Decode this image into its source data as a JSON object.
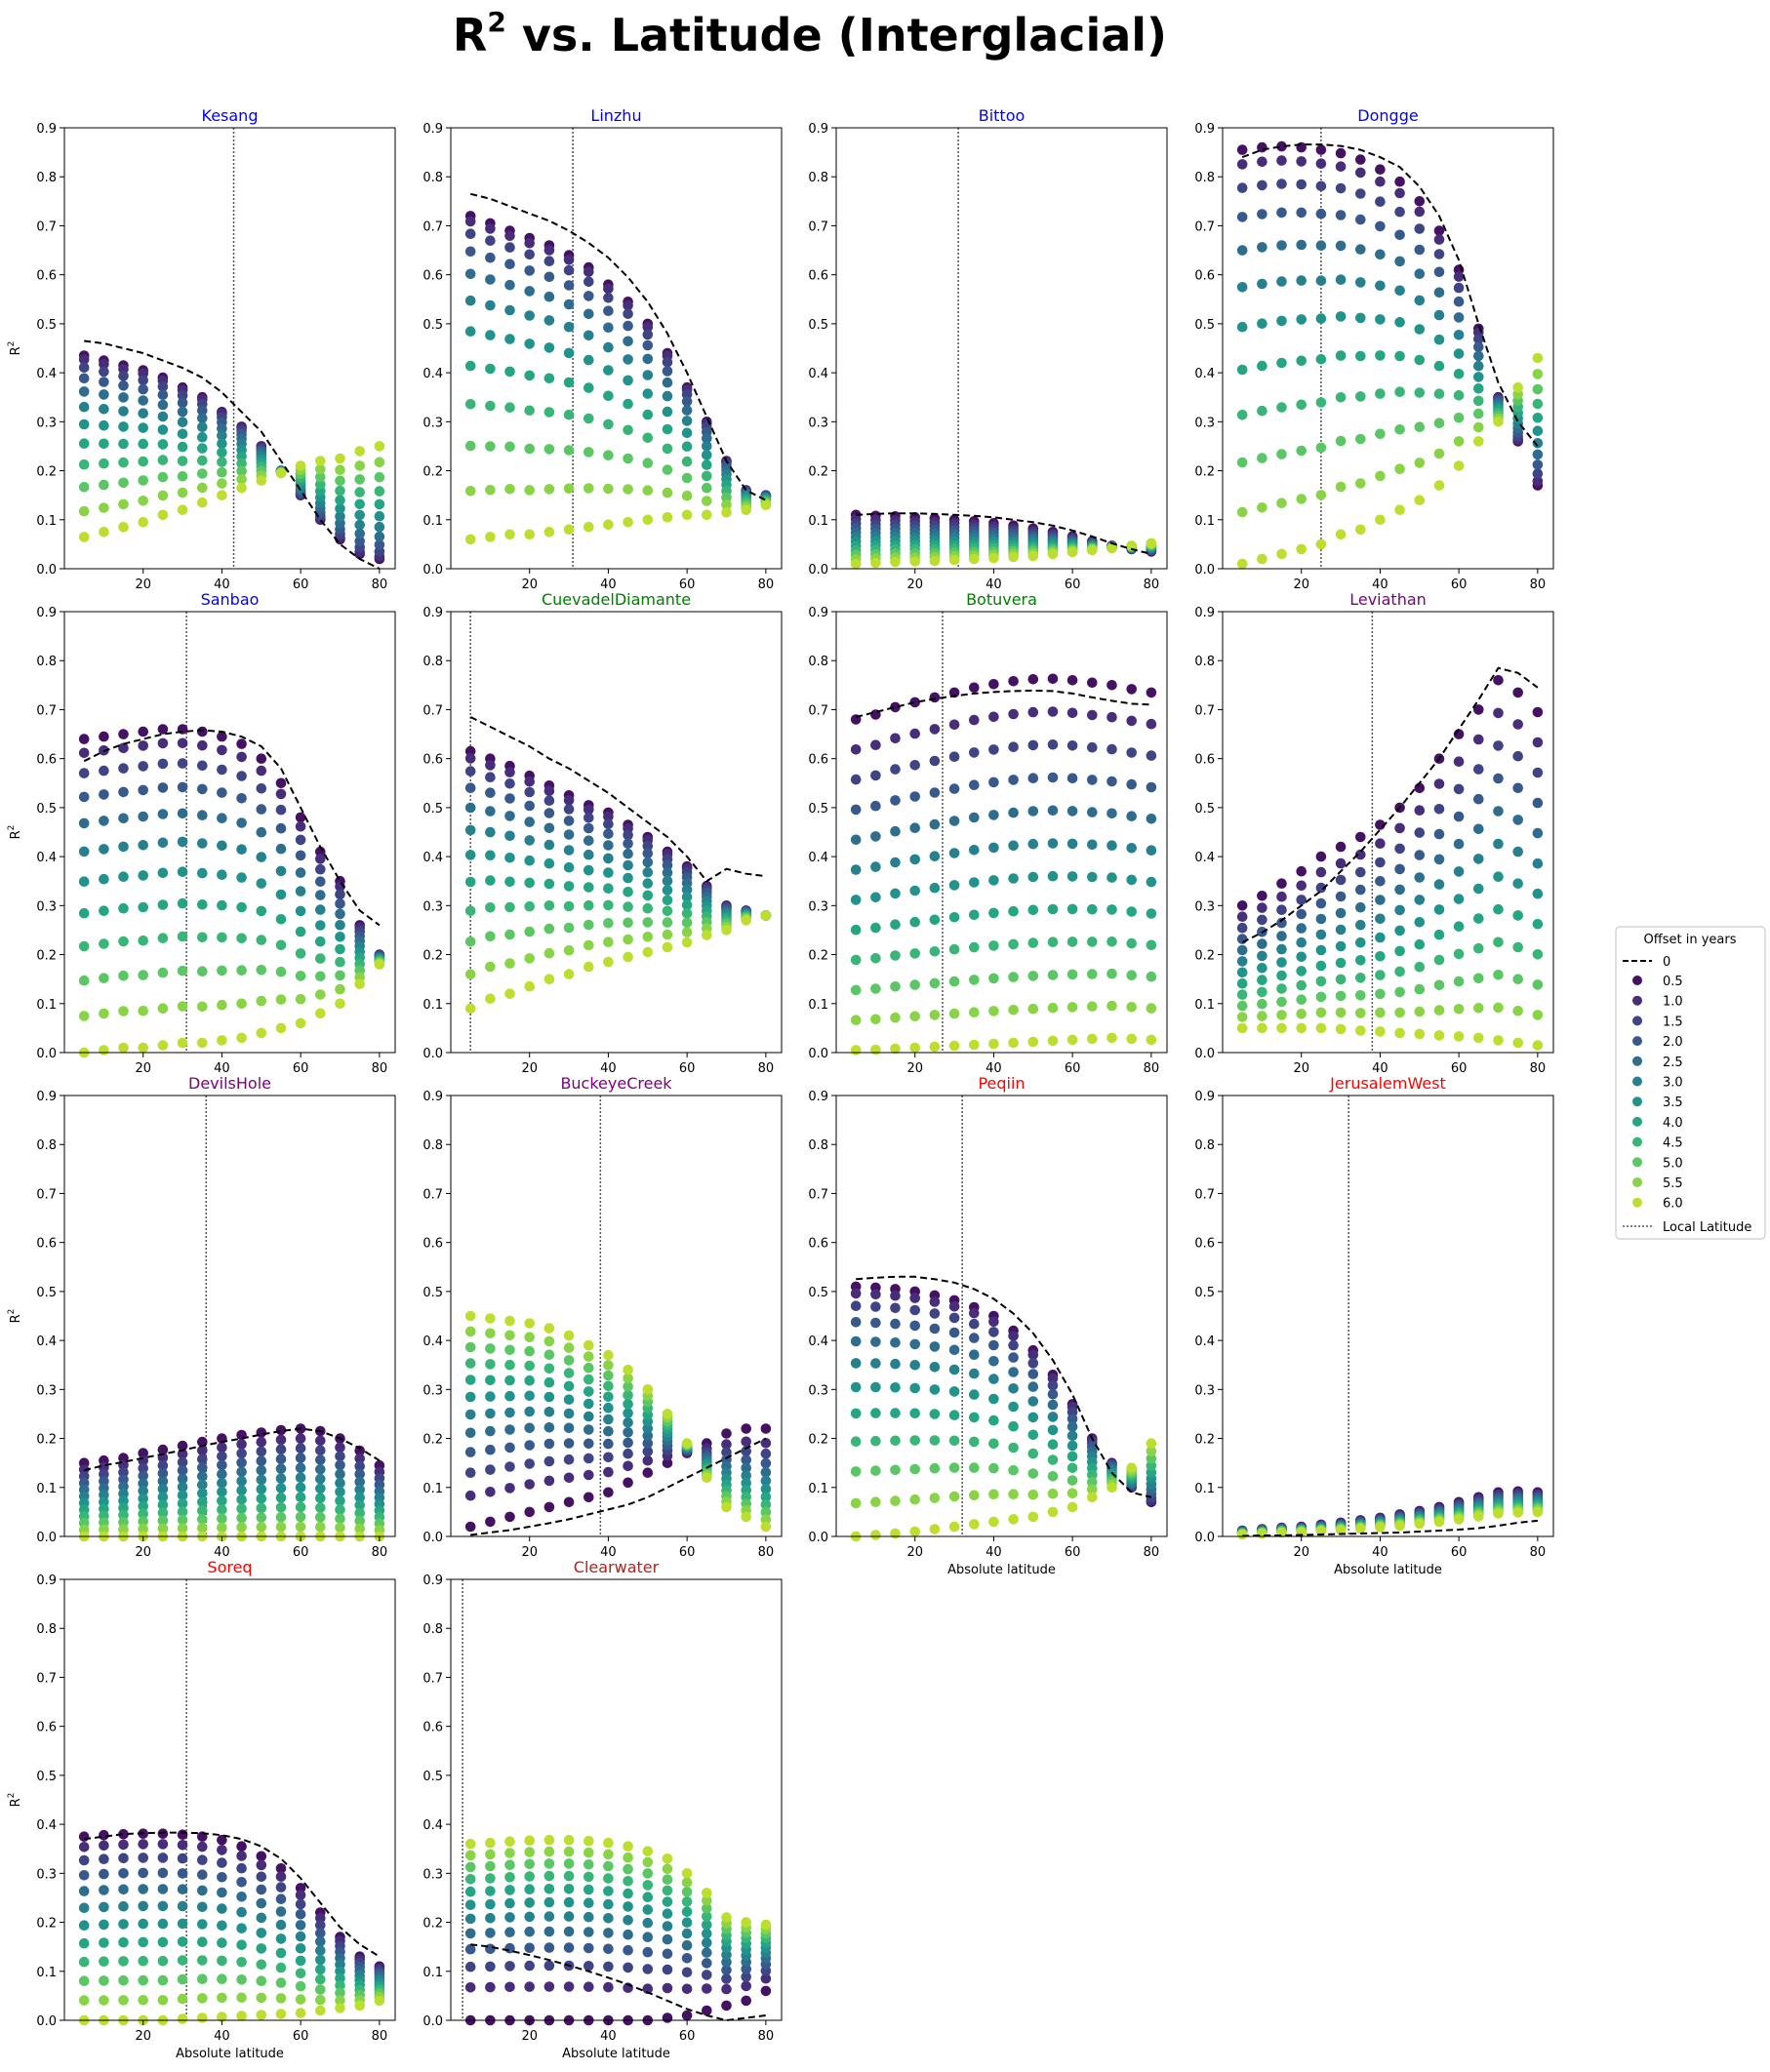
{
  "figure": {
    "title_main": "R",
    "title_sup": "2",
    "title_rest": " vs. Latitude (Interglacial)",
    "xlabel": "Absolute latitude",
    "ylabel_main": "R",
    "ylabel_sup": "2"
  },
  "colors": {
    "blue_group": "#0000ff",
    "green_group": "#008000",
    "purple_group": "#800080",
    "red_group": "#ff0000",
    "darkred_group": "#b22222",
    "baseline": "#000000",
    "local_line": "#555555"
  },
  "legend": {
    "title": "Offset in years",
    "baseline_label": "0",
    "local_label": "Local Latitude",
    "offsets": [
      "0.5",
      "1.0",
      "1.5",
      "2.0",
      "2.5",
      "3.0",
      "3.5",
      "4.0",
      "4.5",
      "5.0",
      "5.5",
      "6.0"
    ]
  },
  "chart_data": {
    "type": "scatter",
    "x": [
      5,
      10,
      15,
      20,
      25,
      30,
      35,
      40,
      45,
      50,
      55,
      60,
      65,
      70,
      75,
      80
    ],
    "xlim": [
      0,
      84
    ],
    "ylim": [
      0,
      0.9
    ],
    "xticks": [
      "20",
      "40",
      "60",
      "80"
    ],
    "yticks": [
      "0.0",
      "0.1",
      "0.2",
      "0.3",
      "0.4",
      "0.5",
      "0.6",
      "0.7",
      "0.8",
      "0.9"
    ],
    "offsets": [
      0.5,
      1.0,
      1.5,
      2.0,
      2.5,
      3.0,
      3.5,
      4.0,
      4.5,
      5.0,
      5.5,
      6.0
    ],
    "panels": [
      {
        "name": "Kesang",
        "color_key": "blue_group",
        "local_lat": 43,
        "b": [
          0.465,
          0.46,
          0.45,
          0.44,
          0.425,
          0.41,
          0.39,
          0.36,
          0.32,
          0.28,
          0.22,
          0.16,
          0.1,
          0.05,
          0.02,
          0.0
        ],
        "top": [
          0.435,
          0.425,
          0.415,
          0.405,
          0.39,
          0.37,
          0.35,
          0.32,
          0.29,
          0.25,
          0.2,
          0.15,
          0.1,
          0.06,
          0.03,
          0.02
        ],
        "shape": "pow",
        "pv": 1.6,
        "end": [
          0.065,
          0.075,
          0.085,
          0.095,
          0.11,
          0.12,
          0.135,
          0.15,
          0.165,
          0.18,
          0.195,
          0.21,
          0.22,
          0.225,
          0.24,
          0.25
        ]
      },
      {
        "name": "Linzhu",
        "color_key": "blue_group",
        "local_lat": 31,
        "b": [
          0.765,
          0.755,
          0.74,
          0.725,
          0.71,
          0.69,
          0.665,
          0.635,
          0.595,
          0.545,
          0.48,
          0.4,
          0.31,
          0.22,
          0.16,
          0.14
        ],
        "top": [
          0.72,
          0.705,
          0.69,
          0.675,
          0.66,
          0.64,
          0.615,
          0.58,
          0.545,
          0.5,
          0.44,
          0.37,
          0.3,
          0.22,
          0.16,
          0.15
        ],
        "shape": "pow",
        "pv": 1.7,
        "end": [
          0.06,
          0.065,
          0.07,
          0.07,
          0.075,
          0.08,
          0.085,
          0.09,
          0.095,
          0.1,
          0.105,
          0.11,
          0.11,
          0.115,
          0.12,
          0.13
        ]
      },
      {
        "name": "Bittoo",
        "color_key": "blue_group",
        "local_lat": 31,
        "b": [
          0.11,
          0.112,
          0.113,
          0.113,
          0.112,
          0.11,
          0.108,
          0.105,
          0.1,
          0.095,
          0.088,
          0.078,
          0.066,
          0.052,
          0.04,
          0.03
        ],
        "top": [
          0.11,
          0.108,
          0.107,
          0.105,
          0.103,
          0.1,
          0.097,
          0.093,
          0.088,
          0.082,
          0.075,
          0.066,
          0.056,
          0.047,
          0.04,
          0.035
        ],
        "shape": "lin",
        "pv": 1,
        "end": [
          0.01,
          0.012,
          0.014,
          0.015,
          0.016,
          0.018,
          0.02,
          0.022,
          0.024,
          0.026,
          0.03,
          0.034,
          0.038,
          0.042,
          0.047,
          0.052
        ]
      },
      {
        "name": "Dongge",
        "color_key": "blue_group",
        "local_lat": 25,
        "b": [
          0.84,
          0.855,
          0.862,
          0.866,
          0.866,
          0.863,
          0.855,
          0.84,
          0.82,
          0.78,
          0.72,
          0.63,
          0.5,
          0.38,
          0.3,
          0.25
        ],
        "top": [
          0.855,
          0.86,
          0.862,
          0.86,
          0.855,
          0.848,
          0.835,
          0.815,
          0.79,
          0.75,
          0.69,
          0.61,
          0.49,
          0.35,
          0.26,
          0.17
        ],
        "shape": "pow",
        "pv": 1.4,
        "end": [
          0.01,
          0.02,
          0.03,
          0.04,
          0.05,
          0.07,
          0.08,
          0.1,
          0.12,
          0.14,
          0.17,
          0.21,
          0.26,
          0.3,
          0.37,
          0.43
        ]
      },
      {
        "name": "Sanbao",
        "color_key": "blue_group",
        "local_lat": 31,
        "b": [
          0.595,
          0.615,
          0.63,
          0.64,
          0.65,
          0.655,
          0.658,
          0.655,
          0.645,
          0.625,
          0.58,
          0.5,
          0.42,
          0.35,
          0.29,
          0.26
        ],
        "top": [
          0.64,
          0.645,
          0.65,
          0.655,
          0.66,
          0.66,
          0.655,
          0.645,
          0.63,
          0.6,
          0.55,
          0.48,
          0.41,
          0.35,
          0.26,
          0.2
        ],
        "shape": "pow",
        "pv": 1.3,
        "end": [
          0.0,
          0.005,
          0.01,
          0.01,
          0.015,
          0.02,
          0.02,
          0.025,
          0.03,
          0.04,
          0.05,
          0.06,
          0.08,
          0.1,
          0.14,
          0.18
        ]
      },
      {
        "name": "CuevadelDiamante",
        "color_key": "green_group",
        "local_lat": 5,
        "b": [
          0.685,
          0.665,
          0.645,
          0.625,
          0.6,
          0.58,
          0.555,
          0.53,
          0.5,
          0.47,
          0.44,
          0.4,
          0.35,
          0.375,
          0.365,
          0.36
        ],
        "top": [
          0.615,
          0.6,
          0.585,
          0.565,
          0.545,
          0.525,
          0.505,
          0.49,
          0.465,
          0.44,
          0.41,
          0.38,
          0.34,
          0.3,
          0.29,
          0.28
        ],
        "shape": "pow",
        "pv": 1.5,
        "end": [
          0.09,
          0.11,
          0.12,
          0.135,
          0.15,
          0.16,
          0.175,
          0.185,
          0.195,
          0.205,
          0.215,
          0.225,
          0.24,
          0.25,
          0.27,
          0.28
        ]
      },
      {
        "name": "Botuvera",
        "color_key": "green_group",
        "local_lat": 27,
        "b": [
          0.685,
          0.695,
          0.705,
          0.715,
          0.722,
          0.728,
          0.733,
          0.736,
          0.738,
          0.739,
          0.738,
          0.733,
          0.725,
          0.718,
          0.712,
          0.71
        ],
        "top": [
          0.68,
          0.69,
          0.705,
          0.715,
          0.725,
          0.735,
          0.745,
          0.752,
          0.758,
          0.762,
          0.763,
          0.76,
          0.755,
          0.75,
          0.742,
          0.735
        ],
        "shape": "lin",
        "pv": 1,
        "end": [
          0.005,
          0.006,
          0.008,
          0.01,
          0.012,
          0.014,
          0.016,
          0.018,
          0.02,
          0.022,
          0.024,
          0.026,
          0.028,
          0.03,
          0.028,
          0.026
        ]
      },
      {
        "name": "Leviathan",
        "color_key": "purple_group",
        "local_lat": 38,
        "b": [
          0.225,
          0.245,
          0.27,
          0.3,
          0.33,
          0.37,
          0.41,
          0.455,
          0.5,
          0.55,
          0.6,
          0.66,
          0.72,
          0.785,
          0.775,
          0.745
        ],
        "top": [
          0.3,
          0.32,
          0.345,
          0.37,
          0.4,
          0.42,
          0.44,
          0.465,
          0.5,
          0.54,
          0.6,
          0.65,
          0.7,
          0.76,
          0.735,
          0.695
        ],
        "shape": "lin",
        "pv": 1,
        "end": [
          0.05,
          0.05,
          0.05,
          0.05,
          0.05,
          0.048,
          0.045,
          0.043,
          0.04,
          0.038,
          0.035,
          0.033,
          0.03,
          0.025,
          0.02,
          0.015
        ]
      },
      {
        "name": "DevilsHole",
        "color_key": "purple_group",
        "local_lat": 36,
        "b": [
          0.135,
          0.145,
          0.152,
          0.16,
          0.168,
          0.176,
          0.185,
          0.193,
          0.2,
          0.208,
          0.215,
          0.22,
          0.215,
          0.2,
          0.18,
          0.155
        ],
        "top": [
          0.15,
          0.155,
          0.16,
          0.17,
          0.177,
          0.185,
          0.193,
          0.2,
          0.207,
          0.212,
          0.217,
          0.22,
          0.215,
          0.2,
          0.175,
          0.145
        ],
        "shape": "lin",
        "pv": 1,
        "end": [
          0.0,
          0.0,
          0.0,
          0.0,
          0.0,
          0.0,
          0.0,
          0.0,
          0.0,
          0.0,
          0.0,
          0.0,
          0.0,
          0.0,
          0.0,
          0.0
        ]
      },
      {
        "name": "BuckeyeCreek",
        "color_key": "purple_group",
        "local_lat": 38,
        "b": [
          0.003,
          0.008,
          0.013,
          0.02,
          0.027,
          0.035,
          0.045,
          0.055,
          0.065,
          0.08,
          0.1,
          0.12,
          0.14,
          0.16,
          0.18,
          0.2
        ],
        "top": [
          0.02,
          0.03,
          0.04,
          0.05,
          0.06,
          0.07,
          0.08,
          0.09,
          0.11,
          0.13,
          0.15,
          0.17,
          0.19,
          0.21,
          0.22,
          0.22
        ],
        "shape": "pow",
        "pv": 0.8,
        "end": [
          0.45,
          0.445,
          0.44,
          0.435,
          0.425,
          0.41,
          0.39,
          0.37,
          0.34,
          0.3,
          0.25,
          0.19,
          0.12,
          0.06,
          0.04,
          0.02
        ]
      },
      {
        "name": "Peqiin",
        "color_key": "red_group",
        "local_lat": 32,
        "b": [
          0.525,
          0.528,
          0.53,
          0.53,
          0.525,
          0.518,
          0.505,
          0.485,
          0.455,
          0.415,
          0.36,
          0.29,
          0.2,
          0.13,
          0.09,
          0.08
        ],
        "top": [
          0.51,
          0.508,
          0.505,
          0.5,
          0.492,
          0.482,
          0.468,
          0.45,
          0.42,
          0.38,
          0.33,
          0.27,
          0.2,
          0.15,
          0.1,
          0.07
        ],
        "shape": "pow",
        "pv": 1.5,
        "end": [
          0.0,
          0.003,
          0.006,
          0.01,
          0.015,
          0.02,
          0.025,
          0.03,
          0.035,
          0.04,
          0.05,
          0.06,
          0.08,
          0.1,
          0.14,
          0.19
        ]
      },
      {
        "name": "JerusalemWest",
        "color_key": "red_group",
        "local_lat": 32,
        "b": [
          0.001,
          0.002,
          0.002,
          0.003,
          0.004,
          0.005,
          0.006,
          0.007,
          0.008,
          0.01,
          0.012,
          0.014,
          0.017,
          0.022,
          0.028,
          0.032
        ],
        "top": [
          0.012,
          0.015,
          0.018,
          0.02,
          0.024,
          0.028,
          0.033,
          0.038,
          0.045,
          0.052,
          0.06,
          0.07,
          0.08,
          0.09,
          0.092,
          0.09
        ],
        "shape": "lin",
        "pv": 1,
        "end": [
          0.004,
          0.006,
          0.008,
          0.009,
          0.011,
          0.013,
          0.016,
          0.019,
          0.022,
          0.026,
          0.03,
          0.035,
          0.041,
          0.047,
          0.049,
          0.05
        ]
      },
      {
        "name": "Soreq",
        "color_key": "red_group",
        "local_lat": 31,
        "b": [
          0.37,
          0.375,
          0.38,
          0.382,
          0.383,
          0.383,
          0.382,
          0.378,
          0.37,
          0.355,
          0.33,
          0.29,
          0.24,
          0.19,
          0.155,
          0.13
        ],
        "top": [
          0.375,
          0.378,
          0.38,
          0.381,
          0.381,
          0.379,
          0.375,
          0.368,
          0.355,
          0.335,
          0.31,
          0.27,
          0.22,
          0.17,
          0.13,
          0.11
        ],
        "shape": "pow",
        "pv": 1.2,
        "end": [
          0.0,
          0.0,
          0.0,
          0.0,
          0.0,
          0.003,
          0.005,
          0.007,
          0.009,
          0.011,
          0.013,
          0.015,
          0.02,
          0.025,
          0.03,
          0.04
        ]
      },
      {
        "name": "Clearwater",
        "color_key": "darkred_group",
        "local_lat": 3,
        "b": [
          0.155,
          0.15,
          0.142,
          0.133,
          0.123,
          0.112,
          0.1,
          0.087,
          0.073,
          0.057,
          0.04,
          0.023,
          0.01,
          0.0,
          0.005,
          0.01
        ],
        "top": [
          0.0,
          0.0,
          0.0,
          0.0,
          0.0,
          0.0,
          0.0,
          0.0,
          0.0,
          0.0,
          0.005,
          0.01,
          0.02,
          0.03,
          0.04,
          0.06
        ],
        "shape": "pow",
        "pv": 0.7,
        "end": [
          0.36,
          0.362,
          0.365,
          0.367,
          0.368,
          0.368,
          0.366,
          0.362,
          0.355,
          0.345,
          0.33,
          0.3,
          0.26,
          0.21,
          0.2,
          0.195
        ]
      }
    ]
  }
}
